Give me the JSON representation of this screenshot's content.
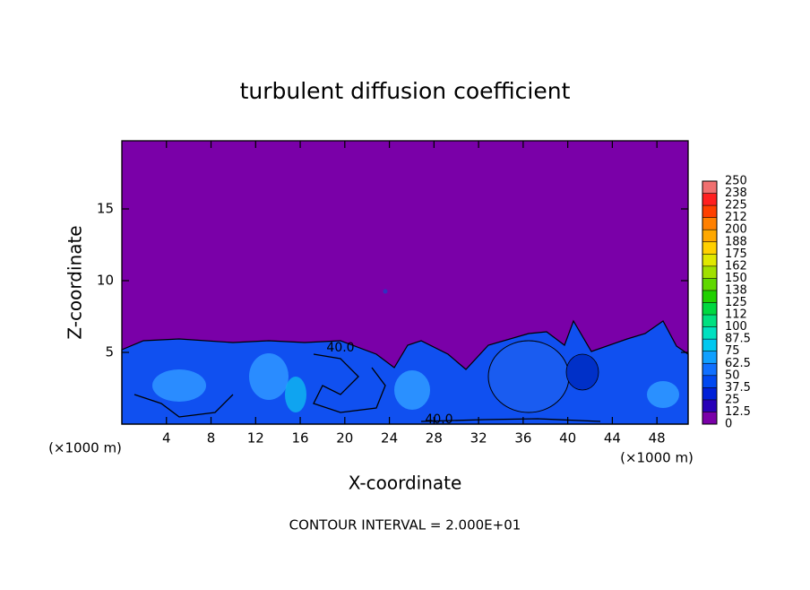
{
  "chart_data": {
    "type": "contour",
    "title": "turbulent diffusion coefficient",
    "x_label": "X-coordinate",
    "y_label": "Z-coordinate",
    "x_unit_labels": [
      "(×1000 m)",
      "(×1000 m)"
    ],
    "footer": "CONTOUR INTERVAL = 2.000E+01",
    "xlim": [
      0,
      50.8
    ],
    "xticks": [
      4,
      8,
      12,
      16,
      20,
      24,
      28,
      32,
      36,
      40,
      44,
      48
    ],
    "ylim": [
      0,
      19.75
    ],
    "yticks": [
      5,
      10,
      15
    ],
    "levels": [
      0,
      12.5,
      25,
      37.5,
      50,
      62.5,
      75,
      87.5,
      100,
      {
        "value": 112.5,
        "label": "112"
      },
      125,
      {
        "value": 137.5,
        "label": "138"
      },
      150,
      {
        "value": 162.5,
        "label": "162"
      },
      175,
      {
        "value": 187.5,
        "label": "188"
      },
      200,
      {
        "value": 212.5,
        "label": "212"
      },
      225,
      {
        "value": 237.5,
        "label": "238"
      },
      250
    ],
    "colors": [
      "#7a00a8",
      "#2800b8",
      "#0020d8",
      "#0048f0",
      "#1070ff",
      "#10a0ff",
      "#00c8f0",
      "#00e0c0",
      "#00e080",
      "#00d840",
      "#20d000",
      "#60d800",
      "#a0e000",
      "#e0e800",
      "#ffd000",
      "#ffa800",
      "#ff8000",
      "#ff4000",
      "#ff2020",
      "#f07070"
    ],
    "contour_labels": [
      "40.0",
      "40.0"
    ]
  }
}
